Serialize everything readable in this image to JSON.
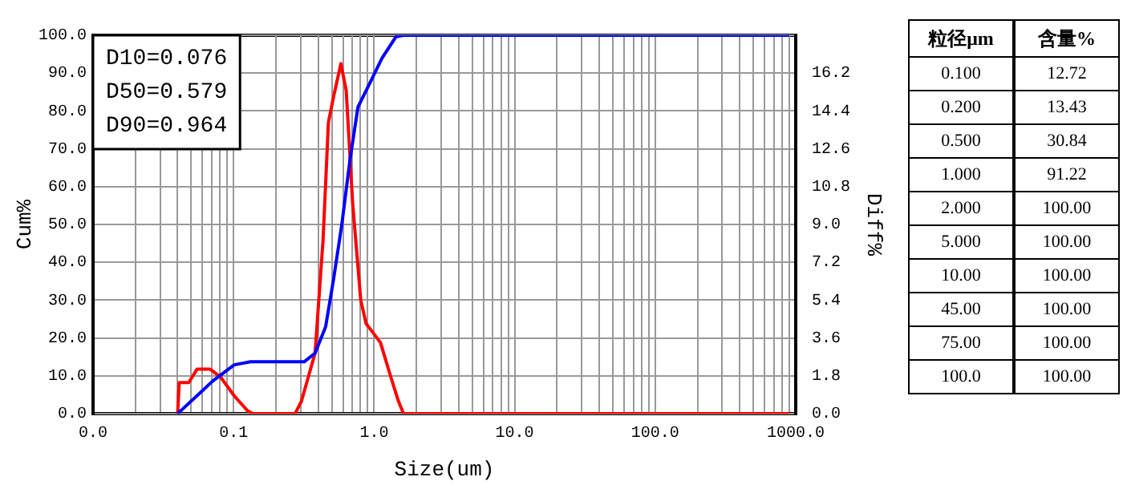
{
  "chart_data": [
    {
      "type": "line",
      "xlabel": "Size(um)",
      "ylabel": "Cum%",
      "y2label": "Diff%",
      "log": "x",
      "grid": true,
      "legend": false,
      "marker": "none",
      "line_style": "solid",
      "xlim": [
        0.01,
        1000
      ],
      "xticks": [
        {
          "value": 0.01,
          "label": "0.0"
        },
        {
          "value": 0.1,
          "label": "0.1"
        },
        {
          "value": 1,
          "label": "1.0"
        },
        {
          "value": 10,
          "label": "10.0"
        },
        {
          "value": 100,
          "label": "100.0"
        },
        {
          "value": 1000,
          "label": "1000.0"
        }
      ],
      "ylim": [
        0,
        100
      ],
      "yticks": [
        {
          "value": 0,
          "label": "0.0"
        },
        {
          "value": 10,
          "label": "10.0"
        },
        {
          "value": 20,
          "label": "20.0"
        },
        {
          "value": 30,
          "label": "30.0"
        },
        {
          "value": 40,
          "label": "40.0"
        },
        {
          "value": 50,
          "label": "50.0"
        },
        {
          "value": 60,
          "label": "60.0"
        },
        {
          "value": 70,
          "label": "70.0"
        },
        {
          "value": 80,
          "label": "80.0"
        },
        {
          "value": 90,
          "label": "90.0"
        },
        {
          "value": 100,
          "label": "100.0"
        }
      ],
      "y2lim": [
        0,
        18
      ],
      "y2ticks": [
        {
          "value": 0,
          "label": "0.0"
        },
        1.8,
        3.6,
        5.4,
        7.2,
        {
          "value": 9,
          "label": "9.0"
        },
        10.8,
        12.6,
        14.4,
        16.2,
        {
          "value": 18,
          "label": null
        }
      ],
      "annotations": [
        "D10=0.076",
        "D50=0.579",
        "D90=0.964"
      ],
      "series": [
        {
          "color": "#0000ff",
          "x": [
            0.04,
            0.071,
            0.101,
            0.132,
            0.318,
            0.38,
            0.452,
            0.516,
            0.589,
            0.673,
            0.767,
            0.916,
            1.14,
            1.43,
            1.62,
            900
          ],
          "values": [
            0,
            8.6,
            12.9,
            13.7,
            13.7,
            16,
            23,
            35.8,
            50,
            67,
            81,
            86.8,
            94,
            99.6,
            100,
            100
          ]
        },
        {
          "color": "#ff0000",
          "axis": "y2",
          "x": [
            0.04,
            0.041,
            0.048,
            0.055,
            0.068,
            0.081,
            0.101,
            0.126,
            0.137,
            0.274,
            0.304,
            0.38,
            0.433,
            0.473,
            0.516,
            0.58,
            0.633,
            0.703,
            0.803,
            0.877,
            1.0,
            1.11,
            1.3,
            1.49,
            1.62,
            900
          ],
          "values": [
            0,
            1.48,
            1.48,
            2.12,
            2.12,
            1.73,
            0.85,
            0.13,
            0,
            0,
            0.59,
            2.88,
            8.24,
            13.86,
            15.12,
            16.65,
            15.37,
            10.03,
            5.4,
            4.28,
            3.78,
            3.38,
            1.85,
            0.59,
            0,
            0
          ]
        }
      ]
    },
    {
      "type": "other",
      "annotations": [
        "粒径μm",
        "含量%",
        "0.100",
        "12.72",
        "0.200",
        "13.43",
        "0.500",
        "30.84",
        "1.000",
        "91.22",
        "2.000",
        "100.00",
        "5.000",
        "100.00",
        "10.00",
        "100.00",
        "45.00",
        "100.00",
        "75.00",
        "100.00",
        "100.0",
        "100.00"
      ]
    }
  ]
}
